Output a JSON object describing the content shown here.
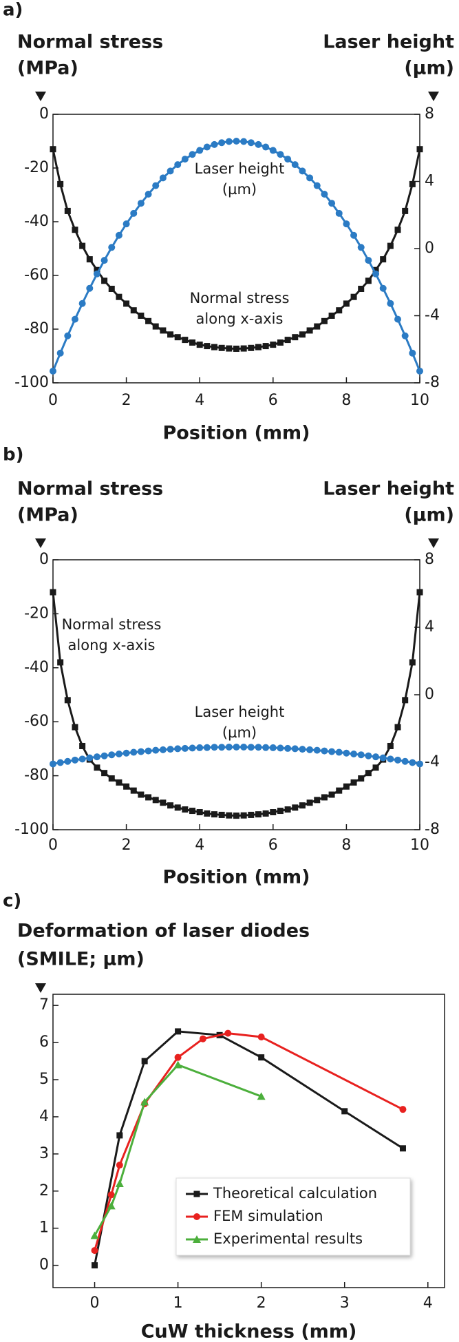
{
  "chart_data": [
    {
      "type": "line",
      "label": "a)",
      "y_label": "Normal stress",
      "y_unit": "(MPa)",
      "y2_label": "Laser height",
      "y2_unit": "(µm)",
      "x_label": "Position (mm)",
      "annotations": [
        "Laser height",
        "(µm)",
        "Normal stress",
        "along x-axis"
      ],
      "xlim": [
        0,
        10
      ],
      "xticks": [
        0,
        2,
        4,
        6,
        8,
        10
      ],
      "ylim": [
        -100,
        0
      ],
      "yticks": [
        0,
        -20,
        -40,
        -60,
        -80,
        -100
      ],
      "y2lim": [
        -8,
        8
      ],
      "y2ticks": [
        8,
        4,
        0,
        -4,
        -8
      ],
      "x": [
        0,
        0.2,
        0.4,
        0.6,
        0.8,
        1,
        1.2,
        1.4,
        1.6,
        1.8,
        2,
        2.2,
        2.4,
        2.6,
        2.8,
        3,
        3.2,
        3.4,
        3.6,
        3.8,
        4,
        4.2,
        4.4,
        4.6,
        4.8,
        5,
        5.2,
        5.4,
        5.6,
        5.8,
        6,
        6.2,
        6.4,
        6.6,
        6.8,
        7,
        7.2,
        7.4,
        7.6,
        7.8,
        8,
        8.2,
        8.4,
        8.6,
        8.8,
        9,
        9.2,
        9.4,
        9.6,
        9.8,
        10
      ],
      "series": [
        {
          "color": "#1a1a1a",
          "marker": "square",
          "values": [
            -13,
            -26,
            -36,
            -43,
            -49,
            -54,
            -58,
            -62,
            -65,
            -68,
            -70.5,
            -73,
            -75,
            -77,
            -79,
            -80.5,
            -82,
            -83,
            -84,
            -85,
            -85.8,
            -86.3,
            -86.7,
            -87,
            -87.2,
            -87.3,
            -87.2,
            -87,
            -86.7,
            -86.3,
            -85.8,
            -85,
            -84,
            -83,
            -82,
            -80.5,
            -79,
            -77,
            -75,
            -73,
            -70.5,
            -68,
            -65,
            -62,
            -58,
            -54,
            -49,
            -43,
            -36,
            -26,
            -13
          ]
        },
        {
          "color": "#2b7bc4",
          "marker": "circle",
          "axis": "y2",
          "values": [
            -7.3,
            -6.23,
            -5.2,
            -4.21,
            -3.27,
            -2.37,
            -1.51,
            -0.7,
            0.07,
            0.79,
            1.47,
            2.1,
            2.7,
            3.24,
            3.75,
            4.21,
            4.62,
            5.0,
            5.33,
            5.61,
            5.85,
            6.05,
            6.2,
            6.31,
            6.38,
            6.4,
            6.38,
            6.31,
            6.2,
            6.05,
            5.85,
            5.61,
            5.33,
            5.0,
            4.62,
            4.21,
            3.75,
            3.24,
            2.7,
            2.1,
            1.47,
            0.79,
            0.07,
            -0.7,
            -1.51,
            -2.37,
            -3.27,
            -4.21,
            -5.2,
            -6.23,
            -7.3
          ]
        }
      ]
    },
    {
      "type": "line",
      "label": "b)",
      "y_label": "Normal stress",
      "y_unit": "(MPa)",
      "y2_label": "Laser height",
      "y2_unit": "(µm)",
      "x_label": "Position (mm)",
      "annotations": [
        "Normal stress",
        "along x-axis",
        "Laser height",
        "(µm)"
      ],
      "xlim": [
        0,
        10
      ],
      "xticks": [
        0,
        2,
        4,
        6,
        8,
        10
      ],
      "ylim": [
        -100,
        0
      ],
      "yticks": [
        0,
        -20,
        -40,
        -60,
        -80,
        -100
      ],
      "y2lim": [
        -8,
        8
      ],
      "y2ticks": [
        8,
        4,
        0,
        -4,
        -8
      ],
      "x": [
        0,
        0.2,
        0.4,
        0.6,
        0.8,
        1,
        1.2,
        1.4,
        1.6,
        1.8,
        2,
        2.2,
        2.4,
        2.6,
        2.8,
        3,
        3.2,
        3.4,
        3.6,
        3.8,
        4,
        4.2,
        4.4,
        4.6,
        4.8,
        5,
        5.2,
        5.4,
        5.6,
        5.8,
        6,
        6.2,
        6.4,
        6.6,
        6.8,
        7,
        7.2,
        7.4,
        7.6,
        7.8,
        8,
        8.2,
        8.4,
        8.6,
        8.8,
        9,
        9.2,
        9.4,
        9.6,
        9.8,
        10
      ],
      "series": [
        {
          "color": "#1a1a1a",
          "marker": "square",
          "values": [
            -12,
            -38,
            -52,
            -62,
            -69,
            -74,
            -77,
            -79,
            -81,
            -82.5,
            -84,
            -85.5,
            -87,
            -88,
            -89,
            -90,
            -91,
            -91.8,
            -92.5,
            -93,
            -93.5,
            -94,
            -94.3,
            -94.5,
            -94.7,
            -94.8,
            -94.7,
            -94.5,
            -94.3,
            -94,
            -93.5,
            -93,
            -92.5,
            -91.8,
            -91,
            -90,
            -89,
            -88,
            -87,
            -85.5,
            -84,
            -82.5,
            -81,
            -79,
            -77,
            -74,
            -69,
            -62,
            -52,
            -38,
            -12
          ]
        },
        {
          "color": "#2b7bc4",
          "marker": "circle",
          "axis": "y2",
          "values": [
            -4.1,
            -4.02,
            -3.95,
            -3.87,
            -3.81,
            -3.74,
            -3.68,
            -3.62,
            -3.56,
            -3.51,
            -3.46,
            -3.41,
            -3.37,
            -3.33,
            -3.29,
            -3.26,
            -3.23,
            -3.2,
            -3.18,
            -3.16,
            -3.14,
            -3.13,
            -3.11,
            -3.11,
            -3.1,
            -3.1,
            -3.1,
            -3.11,
            -3.11,
            -3.13,
            -3.14,
            -3.16,
            -3.18,
            -3.2,
            -3.23,
            -3.26,
            -3.29,
            -3.33,
            -3.37,
            -3.41,
            -3.46,
            -3.51,
            -3.56,
            -3.62,
            -3.68,
            -3.74,
            -3.81,
            -3.87,
            -3.95,
            -4.02,
            -4.1
          ]
        }
      ]
    },
    {
      "type": "line",
      "label": "c)",
      "y_label": "Deformation of laser diodes",
      "y_unit": "(SMILE; µm)",
      "x_label": "CuW thickness (mm)",
      "xlim": [
        -0.5,
        4.2
      ],
      "xticks": [
        0,
        1,
        2,
        3,
        4
      ],
      "ylim": [
        -0.6,
        7.3
      ],
      "yticks": [
        0,
        1,
        2,
        3,
        4,
        5,
        6,
        7
      ],
      "legend": "lower right",
      "series": [
        {
          "name": "Theoretical calculation",
          "color": "#1a1a1a",
          "marker": "square",
          "x": [
            0,
            0.3,
            0.6,
            1.0,
            1.5,
            2.0,
            3.0,
            3.7
          ],
          "values": [
            0,
            3.5,
            5.5,
            6.3,
            6.2,
            5.6,
            4.15,
            3.15
          ]
        },
        {
          "name": "FEM simulation",
          "color": "#e8211f",
          "marker": "circle",
          "x": [
            0,
            0.2,
            0.3,
            0.6,
            1.0,
            1.3,
            1.6,
            2.0,
            3.7
          ],
          "values": [
            0.4,
            1.9,
            2.7,
            4.35,
            5.6,
            6.1,
            6.25,
            6.15,
            4.2
          ]
        },
        {
          "name": "Experimental results",
          "color": "#4caf3c",
          "marker": "triangle",
          "x": [
            0,
            0.2,
            0.3,
            0.6,
            1.0,
            2.0
          ],
          "values": [
            0.8,
            1.6,
            2.2,
            4.4,
            5.4,
            4.55
          ]
        }
      ]
    }
  ]
}
